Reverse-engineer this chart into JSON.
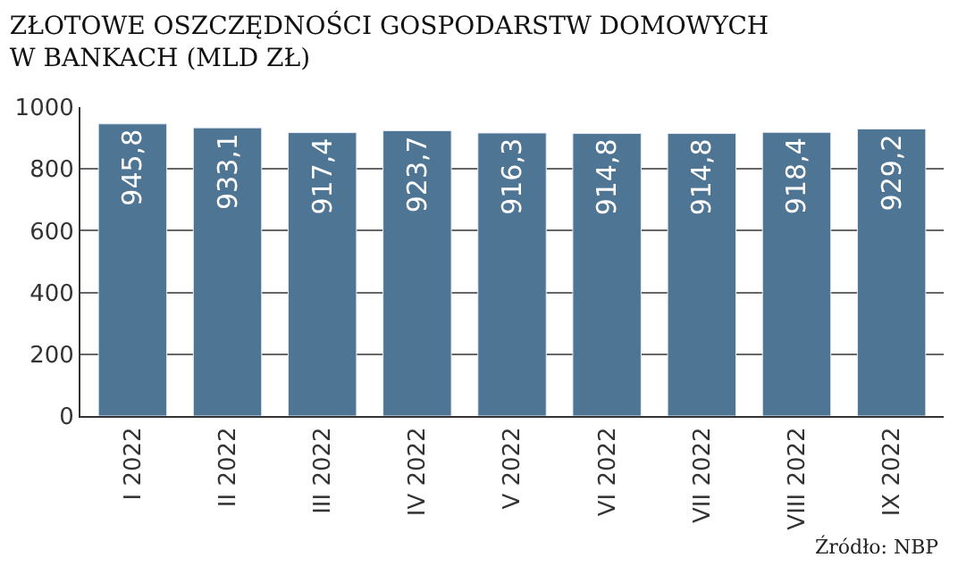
{
  "chart_data": {
    "type": "bar",
    "title": "ZŁOTOWE OSZCZĘDNOŚCI GOSPODARSTW DOMOWYCH\nW BANKACH (MLD ZŁ)",
    "categories": [
      "I 2022",
      "II 2022",
      "III 2022",
      "IV 2022",
      "V 2022",
      "VI 2022",
      "VII 2022",
      "VIII 2022",
      "IX 2022"
    ],
    "values": [
      945.8,
      933.1,
      917.4,
      923.7,
      916.3,
      914.8,
      914.8,
      918.4,
      929.2
    ],
    "value_labels": [
      "945,8",
      "933,1",
      "917,4",
      "923,7",
      "916,3",
      "914,8",
      "914,8",
      "918,4",
      "929,2"
    ],
    "color": "#4f7594",
    "ylim": [
      0,
      1000
    ],
    "yticks": [
      0,
      200,
      400,
      600,
      800,
      1000
    ],
    "grid": "y",
    "legend": false,
    "annotations": [
      "Źródło: NBP"
    ]
  }
}
